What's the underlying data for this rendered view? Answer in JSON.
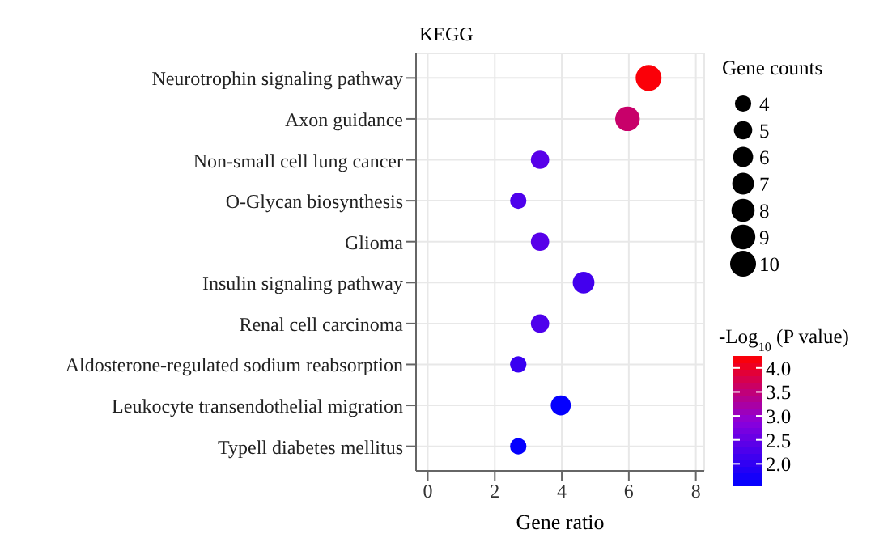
{
  "chart_data": {
    "type": "bubble",
    "title": "KEGG",
    "xlabel": "Gene ratio",
    "legend_title": "Gene counts",
    "clabel": "-Log$_{10}$ (P value)",
    "categories": [
      "Neurotrophin signaling pathway",
      "Axon guidance",
      "Non-small cell lung cancer",
      "O-Glycan biosynthesis",
      "Glioma",
      "Insulin signaling pathway",
      "Renal cell carcinoma",
      "Aldosterone-regulated sodium reabsorption",
      "Leukocyte transendothelial migration",
      "Typell diabetes mellitus"
    ],
    "values": [
      6.59,
      5.96,
      3.35,
      2.7,
      3.35,
      4.65,
      3.35,
      2.7,
      3.97,
      2.7
    ],
    "sizes": [
      10,
      9,
      5,
      4,
      5,
      7,
      5,
      4,
      6,
      4
    ],
    "cvalues": [
      4.2,
      3.6,
      2.4,
      2.3,
      2.4,
      2.2,
      2.3,
      2.1,
      1.6,
      1.6
    ],
    "size_legend": [
      4,
      5,
      6,
      7,
      8,
      9,
      10
    ],
    "clim": [
      1.55,
      4.25
    ],
    "cticks": [
      {
        "value": 2,
        "label": "2.0"
      },
      {
        "value": 2.5,
        "label": "2.5"
      },
      {
        "value": 3,
        "label": "3.0"
      },
      {
        "value": 3.5,
        "label": "3.5"
      },
      {
        "value": 4,
        "label": "4.0"
      }
    ],
    "xlim": [
      -0.35,
      8.25
    ],
    "xticks": [
      0,
      2,
      4,
      6,
      8
    ],
    "orientation": "horizontal",
    "grid": true,
    "marker": "circle"
  }
}
